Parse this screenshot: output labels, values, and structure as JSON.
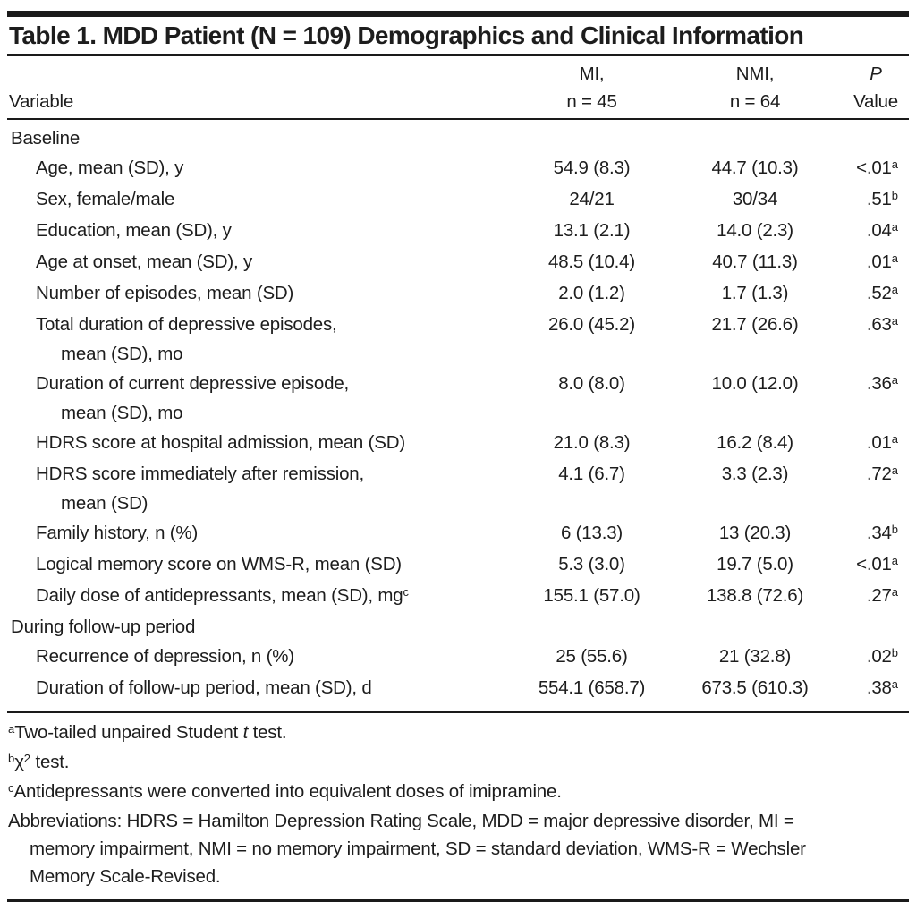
{
  "table": {
    "title": "Table 1. MDD Patient (N = 109) Demographics and Clinical Information",
    "header": {
      "variable": "Variable",
      "mi_group": "MI,",
      "mi_n": "n = 45",
      "nmi_group": "NMI,",
      "nmi_n": "n = 64",
      "p_symbol": "P",
      "p_word": "Value"
    },
    "rows": [
      {
        "type": "section",
        "label": "Baseline"
      },
      {
        "type": "item",
        "label": "Age, mean (SD), y",
        "mi": "54.9 (8.3)",
        "nmi": "44.7 (10.3)",
        "p": "<.01",
        "p_sup": "a"
      },
      {
        "type": "item",
        "label": "Sex, female/male",
        "mi": "24/21",
        "nmi": "30/34",
        "p": ".51",
        "p_sup": "b"
      },
      {
        "type": "item",
        "label": "Education, mean (SD), y",
        "mi": "13.1 (2.1)",
        "nmi": "14.0 (2.3)",
        "p": ".04",
        "p_sup": "a"
      },
      {
        "type": "item",
        "label": "Age at onset, mean (SD), y",
        "mi": "48.5 (10.4)",
        "nmi": "40.7 (11.3)",
        "p": ".01",
        "p_sup": "a"
      },
      {
        "type": "item",
        "label": "Number of episodes, mean (SD)",
        "mi": "2.0 (1.2)",
        "nmi": "1.7 (1.3)",
        "p": ".52",
        "p_sup": "a"
      },
      {
        "type": "item",
        "label": "Total duration of depressive episodes,",
        "label2": "mean (SD), mo",
        "mi": "26.0 (45.2)",
        "nmi": "21.7 (26.6)",
        "p": ".63",
        "p_sup": "a"
      },
      {
        "type": "item",
        "label": "Duration of current depressive episode,",
        "label2": "mean (SD), mo",
        "mi": "8.0 (8.0)",
        "nmi": "10.0 (12.0)",
        "p": ".36",
        "p_sup": "a"
      },
      {
        "type": "item",
        "label": "HDRS score at hospital admission, mean (SD)",
        "mi": "21.0 (8.3)",
        "nmi": "16.2 (8.4)",
        "p": ".01",
        "p_sup": "a"
      },
      {
        "type": "item",
        "label": "HDRS score immediately after remission,",
        "label2": "mean (SD)",
        "mi": "4.1 (6.7)",
        "nmi": "3.3 (2.3)",
        "p": ".72",
        "p_sup": "a"
      },
      {
        "type": "item",
        "label": "Family history, n (%)",
        "mi": "6 (13.3)",
        "nmi": "13 (20.3)",
        "p": ".34",
        "p_sup": "b"
      },
      {
        "type": "item",
        "label": "Logical memory score on WMS-R, mean (SD)",
        "mi": "5.3 (3.0)",
        "nmi": "19.7 (5.0)",
        "p": "<.01",
        "p_sup": "a"
      },
      {
        "type": "item",
        "label": "Daily dose of antidepressants, mean (SD), mg",
        "label_sup": "c",
        "mi": "155.1 (57.0)",
        "nmi": "138.8 (72.6)",
        "p": ".27",
        "p_sup": "a"
      },
      {
        "type": "section",
        "label": "During follow-up period"
      },
      {
        "type": "item",
        "label": "Recurrence of depression, n (%)",
        "mi": "25 (55.6)",
        "nmi": "21 (32.8)",
        "p": ".02",
        "p_sup": "b"
      },
      {
        "type": "item",
        "label": "Duration of follow-up period, mean (SD), d",
        "mi": "554.1 (658.7)",
        "nmi": "673.5 (610.3)",
        "p": ".38",
        "p_sup": "a"
      }
    ],
    "footnotes": [
      {
        "marker": "a",
        "parts": [
          {
            "text": "Two-tailed unpaired Student "
          },
          {
            "text": "t",
            "style": "italic"
          },
          {
            "text": " test."
          }
        ]
      },
      {
        "marker": "b",
        "parts": [
          {
            "text": "χ"
          },
          {
            "text": "2",
            "style": "sup"
          },
          {
            "text": " test."
          }
        ]
      },
      {
        "marker": "c",
        "parts": [
          {
            "text": "Antidepressants were converted into equivalent doses of imipramine."
          }
        ]
      },
      {
        "marker": "",
        "hanging": true,
        "parts": [
          {
            "text": "Abbreviations: HDRS = Hamilton Depression Rating Scale, MDD = major depressive disorder, MI = memory impairment, NMI = no memory impairment, SD = standard deviation, WMS-R = Wechsler Memory Scale-Revised."
          }
        ]
      }
    ]
  }
}
